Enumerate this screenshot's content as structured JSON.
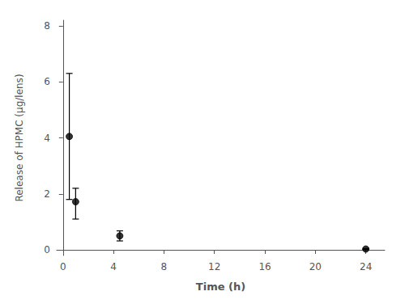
{
  "chart_data": {
    "type": "scatter",
    "xlabel": "Time (h)",
    "ylabel": "Release of HPMC (μg/lens)",
    "x": [
      0.5,
      1.0,
      4.5,
      24.0
    ],
    "values": [
      4.05,
      1.72,
      0.5,
      0.03
    ],
    "yerr_low": [
      2.25,
      0.62,
      0.18,
      0.02
    ],
    "yerr_high": [
      2.25,
      0.48,
      0.18,
      0.02
    ],
    "xlim": [
      -0.5,
      25.5
    ],
    "ylim": [
      -0.2,
      8.2
    ],
    "xticks": [
      0,
      4,
      8,
      12,
      16,
      20,
      24
    ],
    "yticks": [
      0,
      2,
      4,
      6,
      8
    ],
    "color": "#000000",
    "marker": "circle",
    "grid": false
  }
}
